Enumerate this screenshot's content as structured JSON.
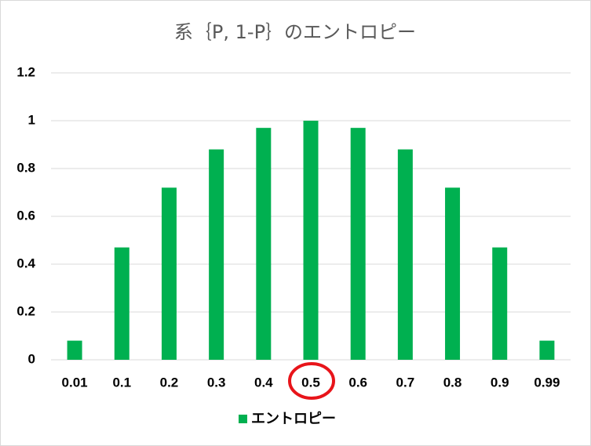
{
  "chart_data": {
    "type": "bar",
    "title": "系｛P, 1-P｝のエントロピー",
    "categories": [
      "0.01",
      "0.1",
      "0.2",
      "0.3",
      "0.4",
      "0.5",
      "0.6",
      "0.7",
      "0.8",
      "0.9",
      "0.99"
    ],
    "series": [
      {
        "name": "エントロピー",
        "color": "#00b050",
        "values": [
          0.08,
          0.47,
          0.72,
          0.88,
          0.97,
          1,
          0.97,
          0.88,
          0.72,
          0.47,
          0.08
        ]
      }
    ],
    "ylim": [
      0,
      1.2
    ],
    "yticks": [
      0,
      0.2,
      0.4,
      0.6,
      0.8,
      1,
      1.2
    ],
    "grid": true,
    "legend": "bottom"
  }
}
